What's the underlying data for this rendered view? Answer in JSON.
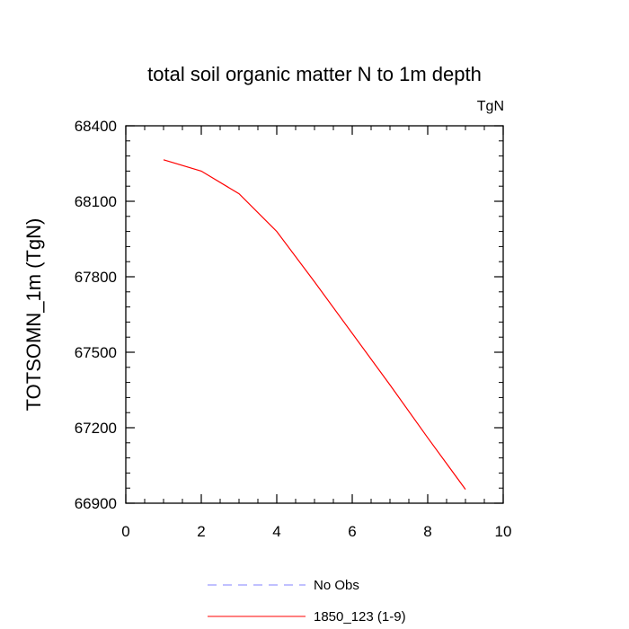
{
  "chart_data": {
    "type": "line",
    "title": "total soil organic matter N to 1m depth",
    "units_label": "TgN",
    "xlabel": "",
    "ylabel": "TOTSOMN_1m  (TgN)",
    "xlim": [
      0,
      10
    ],
    "ylim": [
      66900,
      68400
    ],
    "x_ticks": [
      0,
      2,
      4,
      6,
      8,
      10
    ],
    "x_tick_labels": [
      "0",
      "2",
      "4",
      "6",
      "8",
      "10"
    ],
    "y_ticks": [
      66900,
      67200,
      67500,
      67800,
      68100,
      68400
    ],
    "y_tick_labels": [
      "66900",
      "67200",
      "67500",
      "67800",
      "68100",
      "68400"
    ],
    "grid": false,
    "legend_position": "bottom-center",
    "series": [
      {
        "name": "No Obs",
        "color": "#8080ff",
        "style": "dashed",
        "x": [],
        "y": []
      },
      {
        "name": "1850_123 (1-9)",
        "color": "#ff0000",
        "style": "solid",
        "x": [
          1,
          2,
          3,
          4,
          5,
          6,
          7,
          8,
          9
        ],
        "y": [
          68265,
          68220,
          68130,
          67980,
          67780,
          67575,
          67370,
          67160,
          66955
        ]
      }
    ]
  }
}
